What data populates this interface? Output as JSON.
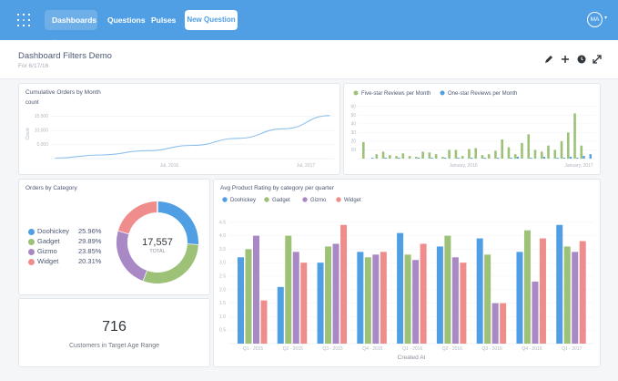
{
  "nav": {
    "dashboards_label": "Dashboards",
    "questions_label": "Questions",
    "pulses_label": "Pulses",
    "new_question_label": "New Question",
    "avatar_initials": "MA"
  },
  "header": {
    "title": "Dashboard Filters Demo",
    "subtitle": "For 6/17/16",
    "icons": [
      "pencil-icon",
      "plus-icon",
      "history-icon",
      "expand-icon"
    ]
  },
  "colors": {
    "accent": "#509ee3",
    "blue": "#509ee3",
    "green": "#9cc177",
    "purple": "#a989c5",
    "red": "#ef8c8c"
  },
  "cards": {
    "cumulative": {
      "title": "Cumulative Orders by Month",
      "y_label": "count",
      "axis_title": "Count",
      "y_ticks": [
        "15,000",
        "10,000",
        "5,000"
      ],
      "x_ticks": [
        "Jul, 2016",
        "Jul, 2017"
      ]
    },
    "reviews": {
      "legend": [
        "Five-star Reviews per Month",
        "One-star Reviews per Month"
      ],
      "y_ticks": [
        "60",
        "50",
        "40",
        "30",
        "20",
        "10"
      ],
      "x_ticks": [
        "January, 2016",
        "January, 2017"
      ]
    },
    "category": {
      "title": "Orders by Category",
      "items": [
        {
          "name": "Doohickey",
          "pct": "25.96%"
        },
        {
          "name": "Gadget",
          "pct": "29.89%"
        },
        {
          "name": "Gizmo",
          "pct": "23.85%"
        },
        {
          "name": "Widget",
          "pct": "20.31%"
        }
      ],
      "total": "17,557",
      "total_label": "TOTAL"
    },
    "rating": {
      "title": "Avg Product Rating by category per quarter",
      "legend": [
        "Doohickey",
        "Gadget",
        "Gizmo",
        "Widget"
      ],
      "x_label": "Created At",
      "y_ticks": [
        "4.5",
        "4.0",
        "3.5",
        "3.0",
        "2.5",
        "2.0",
        "1.5",
        "1.0",
        "0.5"
      ]
    },
    "customers": {
      "value": "716",
      "label": "Customers in Target Age Range"
    }
  },
  "chart_data": [
    {
      "type": "line",
      "title": "Cumulative Orders by Month",
      "ylabel": "Count",
      "ylim": [
        0,
        17500
      ],
      "x": [
        "2015-01",
        "2015-07",
        "2016-01",
        "2016-07",
        "2017-01",
        "2017-07",
        "2018-01"
      ],
      "values": [
        200,
        1300,
        2800,
        4700,
        7200,
        10600,
        15300
      ]
    },
    {
      "type": "bar",
      "ylim": [
        0,
        65
      ],
      "series": [
        {
          "name": "Five-star Reviews per Month",
          "values": [
            19,
            0,
            5,
            8,
            4,
            3,
            6,
            3,
            2,
            8,
            7,
            5,
            2,
            10,
            10,
            3,
            11,
            12,
            4,
            5,
            9,
            22,
            13,
            5,
            18,
            28,
            10,
            8,
            15,
            10,
            20,
            30,
            52,
            15,
            0
          ]
        },
        {
          "name": "One-star Reviews per Month",
          "values": [
            0,
            1,
            0,
            1,
            0,
            1,
            0,
            0,
            1,
            0,
            1,
            0,
            1,
            0,
            1,
            0,
            1,
            0,
            1,
            0,
            1,
            0,
            1,
            2,
            0,
            1,
            0,
            2,
            0,
            1,
            1,
            2,
            1,
            3,
            5
          ]
        }
      ]
    },
    {
      "type": "pie",
      "title": "Orders by Category",
      "categories": [
        "Doohickey",
        "Gadget",
        "Gizmo",
        "Widget"
      ],
      "values": [
        25.96,
        29.89,
        23.85,
        20.31
      ],
      "total": 17557
    },
    {
      "type": "bar",
      "title": "Avg Product Rating by category per quarter",
      "xlabel": "Created At",
      "ylim": [
        0,
        5
      ],
      "categories": [
        "Q1 - 2015",
        "Q2 - 2015",
        "Q3 - 2015",
        "Q4 - 2015",
        "Q1 - 2016",
        "Q2 - 2016",
        "Q3 - 2016",
        "Q4 - 2016",
        "Q1 - 2017"
      ],
      "series": [
        {
          "name": "Doohickey",
          "values": [
            3.2,
            2.1,
            3.0,
            3.4,
            4.1,
            3.6,
            3.9,
            3.4,
            4.4
          ]
        },
        {
          "name": "Gadget",
          "values": [
            3.5,
            4.0,
            3.6,
            3.2,
            3.3,
            4.0,
            3.3,
            4.2,
            3.6
          ]
        },
        {
          "name": "Gizmo",
          "values": [
            4.0,
            3.4,
            3.7,
            3.3,
            3.1,
            3.2,
            1.5,
            2.3,
            3.4
          ]
        },
        {
          "name": "Widget",
          "values": [
            1.6,
            3.0,
            4.4,
            3.4,
            3.7,
            3.0,
            1.5,
            3.9,
            3.8
          ]
        }
      ]
    }
  ]
}
